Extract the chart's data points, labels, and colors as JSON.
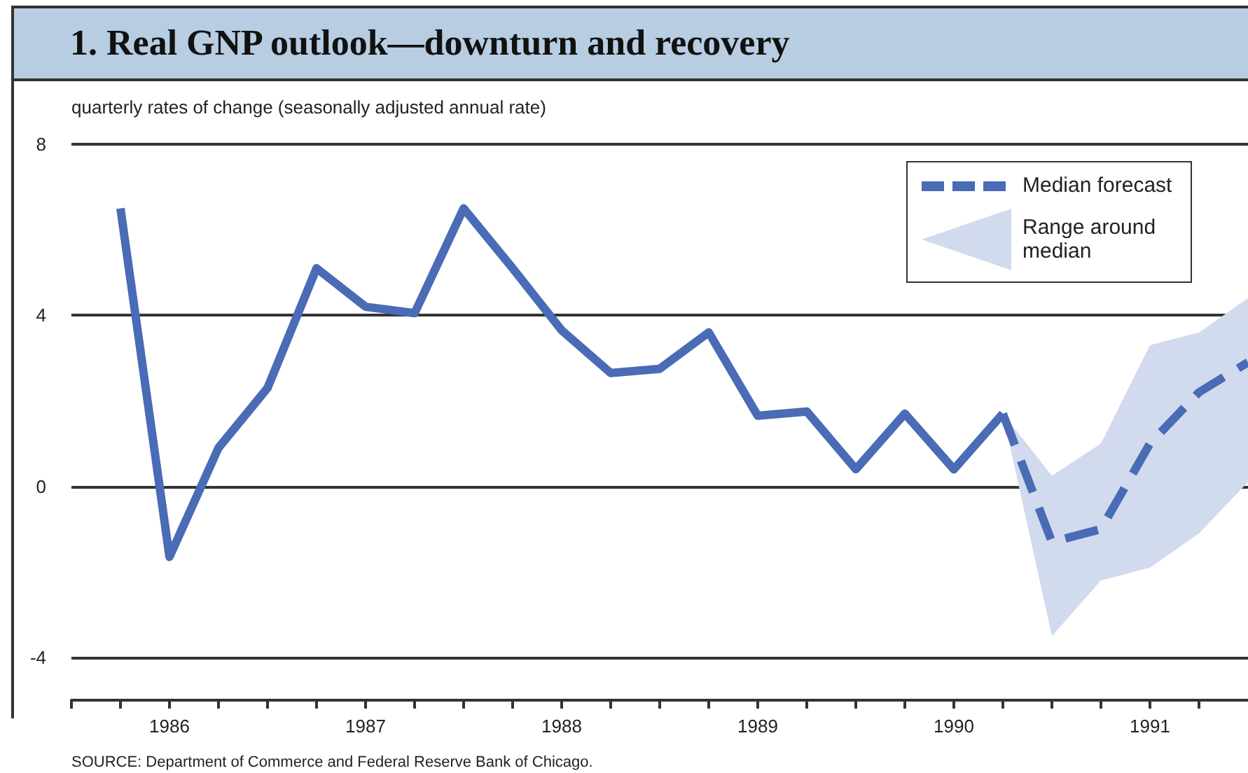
{
  "chart_data": {
    "type": "line",
    "title": "1. Real GNP outlook—downturn and recovery",
    "ylabel": "quarterly rates of change (seasonally adjusted annual rate)",
    "annotations": [
      "SOURCE: Department of Commerce and Federal Reserve Bank of Chicago.",
      "Range around median"
    ],
    "series": [
      {
        "color": "#4a6bb5",
        "line_style": "solid",
        "x": [
          1986.25,
          1986.5,
          1986.75,
          1987.0,
          1987.25,
          1987.5,
          1987.75,
          1988.0,
          1988.25,
          1988.5,
          1988.75,
          1989.0,
          1989.25,
          1989.5,
          1989.75,
          1990.0,
          1990.25,
          1990.5,
          1990.75
        ],
        "values": [
          6.5,
          -1.65,
          0.9,
          2.3,
          5.1,
          4.2,
          4.05,
          6.5,
          5.1,
          3.65,
          2.65,
          2.75,
          3.6,
          1.65,
          1.75,
          0.4,
          1.7,
          0.4,
          1.7
        ]
      },
      {
        "name": "Median forecast",
        "color": "#4a6bb5",
        "line_style": "dashed",
        "x": [
          1990.75,
          1991.0,
          1991.25,
          1991.5,
          1991.75,
          1992.0
        ],
        "values": [
          1.7,
          -1.3,
          -1.0,
          1.0,
          2.2,
          2.9
        ],
        "lower": [
          1.7,
          -3.5,
          -2.2,
          -1.9,
          -1.1,
          0.1
        ],
        "upper": [
          1.7,
          0.25,
          1.0,
          3.3,
          3.6,
          4.4
        ]
      }
    ],
    "xlim": [
      1986,
      1992
    ],
    "xticks": [
      {
        "value": 1986,
        "label": null
      },
      {
        "value": 1986.25,
        "label": null
      },
      {
        "value": 1986.5,
        "label": "1986"
      },
      {
        "value": 1986.75,
        "label": null
      },
      {
        "value": 1987,
        "label": null
      },
      {
        "value": 1987.25,
        "label": null
      },
      {
        "value": 1987.5,
        "label": "1987"
      },
      {
        "value": 1987.75,
        "label": null
      },
      {
        "value": 1988,
        "label": null
      },
      {
        "value": 1988.25,
        "label": null
      },
      {
        "value": 1988.5,
        "label": "1988"
      },
      {
        "value": 1988.75,
        "label": null
      },
      {
        "value": 1989,
        "label": null
      },
      {
        "value": 1989.25,
        "label": null
      },
      {
        "value": 1989.5,
        "label": "1989"
      },
      {
        "value": 1989.75,
        "label": null
      },
      {
        "value": 1990,
        "label": null
      },
      {
        "value": 1990.25,
        "label": null
      },
      {
        "value": 1990.5,
        "label": "1990"
      },
      {
        "value": 1990.75,
        "label": null
      },
      {
        "value": 1991,
        "label": null
      },
      {
        "value": 1991.25,
        "label": null
      },
      {
        "value": 1991.5,
        "label": "1991"
      },
      {
        "value": 1991.75,
        "label": null
      }
    ],
    "ylim": [
      -5,
      8
    ],
    "yticks": [
      -4,
      0,
      4,
      8
    ],
    "grid": "y",
    "legend": "top right",
    "marker": "none"
  }
}
